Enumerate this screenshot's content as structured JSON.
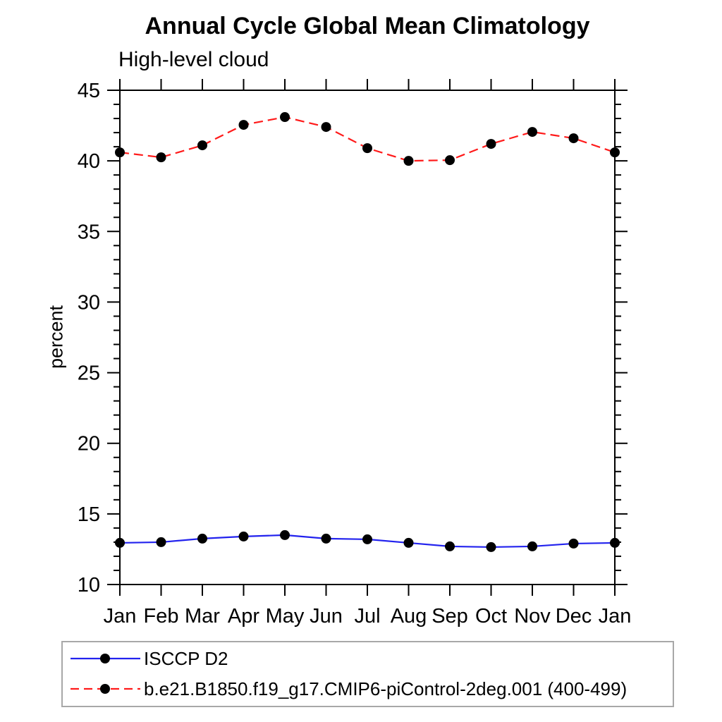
{
  "page": {
    "title": "Annual Cycle Global Mean Climatology",
    "subtitle": "High-level cloud"
  },
  "chart_data": {
    "type": "line",
    "title": "Annual Cycle Global Mean Climatology",
    "subtitle": "High-level cloud",
    "xlabel": "",
    "ylabel": "percent",
    "categories": [
      "Jan",
      "Feb",
      "Mar",
      "Apr",
      "May",
      "Jun",
      "Jul",
      "Aug",
      "Sep",
      "Oct",
      "Nov",
      "Dec",
      "Jan"
    ],
    "ylim": [
      10,
      45
    ],
    "ytick_major": 5,
    "ytick_minor": 1,
    "grid": false,
    "legend_position": "bottom-left-box",
    "axis_color": "#000000",
    "marker": "filled-circle",
    "series": [
      {
        "name": "ISCCP D2",
        "color": "#2222ee",
        "style": "solid",
        "marker_color": "#000000",
        "values": [
          12.95,
          13.0,
          13.25,
          13.4,
          13.5,
          13.25,
          13.2,
          12.95,
          12.7,
          12.65,
          12.7,
          12.9,
          12.95
        ]
      },
      {
        "name": "b.e21.B1850.f19_g17.CMIP6-piControl-2deg.001 (400-499)",
        "color": "#ff1a1a",
        "style": "dashed",
        "marker_color": "#000000",
        "values": [
          40.6,
          40.25,
          41.1,
          42.55,
          43.1,
          42.4,
          40.9,
          40.0,
          40.05,
          41.2,
          42.05,
          41.6,
          40.6
        ]
      }
    ]
  }
}
